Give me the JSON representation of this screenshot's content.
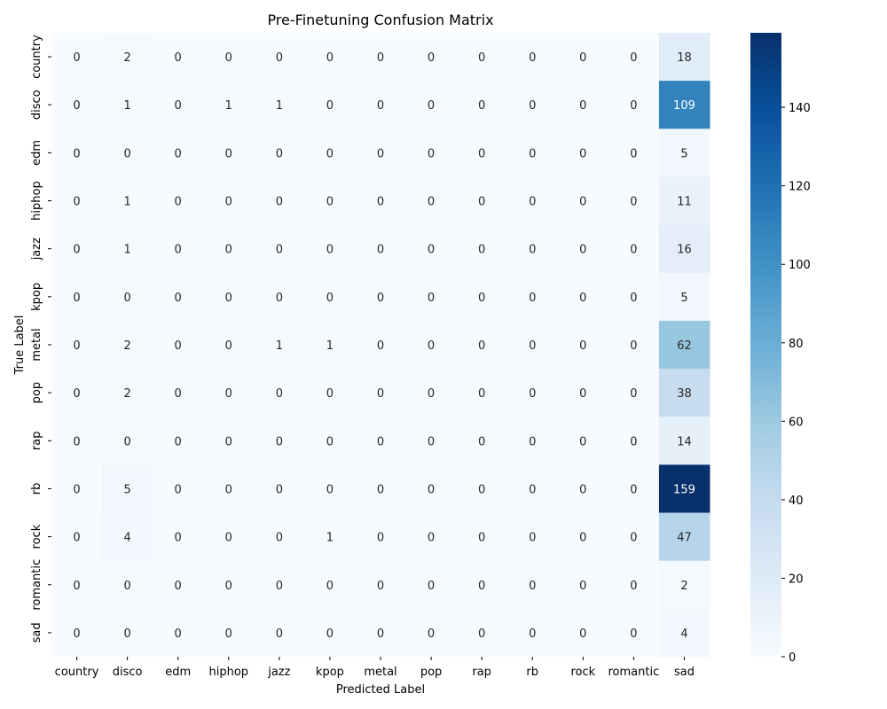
{
  "chart_data": {
    "type": "heatmap",
    "title": "Pre-Finetuning Confusion Matrix",
    "xlabel": "Predicted Label",
    "ylabel": "True Label",
    "x_categories": [
      "country",
      "disco",
      "edm",
      "hiphop",
      "jazz",
      "kpop",
      "metal",
      "pop",
      "rap",
      "rb",
      "rock",
      "romantic",
      "sad"
    ],
    "y_categories": [
      "country",
      "disco",
      "edm",
      "hiphop",
      "jazz",
      "kpop",
      "metal",
      "pop",
      "rap",
      "rb",
      "rock",
      "romantic",
      "sad"
    ],
    "values": [
      [
        0,
        2,
        0,
        0,
        0,
        0,
        0,
        0,
        0,
        0,
        0,
        0,
        18
      ],
      [
        0,
        1,
        0,
        1,
        1,
        0,
        0,
        0,
        0,
        0,
        0,
        0,
        109
      ],
      [
        0,
        0,
        0,
        0,
        0,
        0,
        0,
        0,
        0,
        0,
        0,
        0,
        5
      ],
      [
        0,
        1,
        0,
        0,
        0,
        0,
        0,
        0,
        0,
        0,
        0,
        0,
        11
      ],
      [
        0,
        1,
        0,
        0,
        0,
        0,
        0,
        0,
        0,
        0,
        0,
        0,
        16
      ],
      [
        0,
        0,
        0,
        0,
        0,
        0,
        0,
        0,
        0,
        0,
        0,
        0,
        5
      ],
      [
        0,
        2,
        0,
        0,
        1,
        1,
        0,
        0,
        0,
        0,
        0,
        0,
        62
      ],
      [
        0,
        2,
        0,
        0,
        0,
        0,
        0,
        0,
        0,
        0,
        0,
        0,
        38
      ],
      [
        0,
        0,
        0,
        0,
        0,
        0,
        0,
        0,
        0,
        0,
        0,
        0,
        14
      ],
      [
        0,
        5,
        0,
        0,
        0,
        0,
        0,
        0,
        0,
        0,
        0,
        0,
        159
      ],
      [
        0,
        4,
        0,
        0,
        0,
        1,
        0,
        0,
        0,
        0,
        0,
        0,
        47
      ],
      [
        0,
        0,
        0,
        0,
        0,
        0,
        0,
        0,
        0,
        0,
        0,
        0,
        2
      ],
      [
        0,
        0,
        0,
        0,
        0,
        0,
        0,
        0,
        0,
        0,
        0,
        0,
        4
      ]
    ],
    "colorbar": {
      "colormap": "Blues",
      "range": [
        0,
        159
      ],
      "ticks": [
        0,
        20,
        40,
        60,
        80,
        100,
        120,
        140
      ]
    },
    "annotations_shown": true,
    "grid": false
  }
}
